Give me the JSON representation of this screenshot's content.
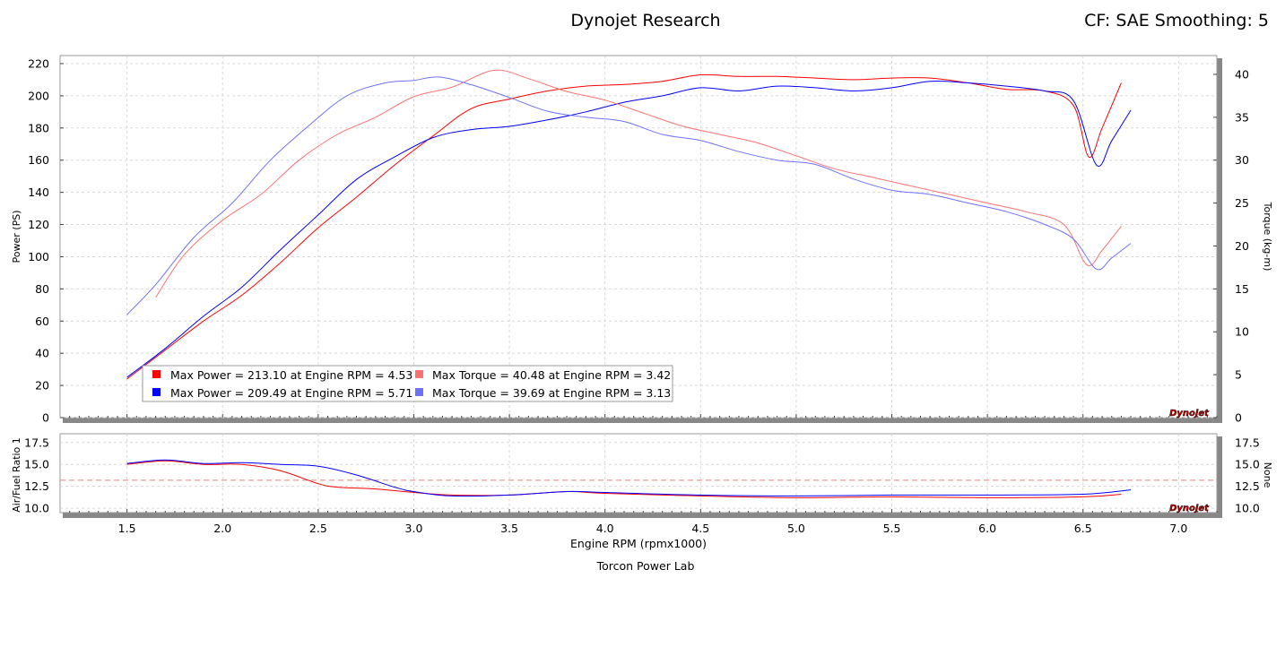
{
  "header": {
    "title": "Dynojet Research",
    "right": "CF: SAE Smoothing: 5"
  },
  "footer": "Torcon Power Lab",
  "colors": {
    "power_run1": "#ff0000",
    "power_run2": "#0000ff",
    "torque_run1": "#ff7070",
    "torque_run2": "#7070ff",
    "afr_target": "#e88080"
  },
  "logo_text": "Dynojet",
  "chart_data": [
    {
      "type": "line",
      "panel": "top",
      "xlabel": "",
      "ylabel": "Power (PS)",
      "y2label": "Torque (kg-m)",
      "xlim": [
        1.15,
        7.2
      ],
      "ylim": [
        0,
        225
      ],
      "y2lim": [
        0,
        42.19
      ],
      "x_ticks": [
        1.5,
        2.0,
        2.5,
        3.0,
        3.5,
        4.0,
        4.5,
        5.0,
        5.5,
        6.0,
        6.5,
        7.0
      ],
      "y_ticks": [
        0,
        20,
        40,
        60,
        80,
        100,
        120,
        140,
        160,
        180,
        200,
        220
      ],
      "y2_ticks": [
        0,
        5,
        10,
        15,
        20,
        25,
        30,
        35,
        40
      ],
      "grid": true,
      "legend": "bottom-left",
      "legend_entries": [
        "Max Power = 213.10 at Engine RPM = 4.53",
        "Max Torque = 40.48 at Engine RPM = 3.42",
        "Max Power = 209.49 at Engine RPM = 5.71",
        "Max Torque = 39.69 at Engine RPM = 3.13"
      ],
      "series": [
        {
          "axis": "left",
          "x": [
            1.5,
            1.7,
            1.9,
            2.1,
            2.3,
            2.5,
            2.7,
            2.9,
            3.1,
            3.3,
            3.5,
            3.7,
            3.9,
            4.1,
            4.3,
            4.5,
            4.7,
            4.9,
            5.1,
            5.3,
            5.5,
            5.7,
            5.9,
            6.1,
            6.3,
            6.45,
            6.53,
            6.6,
            6.7
          ],
          "values": [
            24,
            42,
            60,
            76,
            96,
            118,
            137,
            157,
            175,
            192,
            198,
            203,
            206,
            207,
            209,
            213,
            212,
            212,
            211,
            210,
            211,
            211,
            208,
            204,
            203,
            194,
            162,
            180,
            208
          ]
        },
        {
          "axis": "left",
          "x": [
            1.5,
            1.7,
            1.9,
            2.1,
            2.3,
            2.5,
            2.7,
            2.9,
            3.1,
            3.3,
            3.5,
            3.7,
            3.9,
            4.1,
            4.3,
            4.5,
            4.7,
            4.9,
            5.1,
            5.3,
            5.5,
            5.7,
            5.9,
            6.1,
            6.3,
            6.45,
            6.57,
            6.65,
            6.75
          ],
          "values": [
            25,
            43,
            63,
            81,
            104,
            126,
            148,
            162,
            174,
            179,
            181,
            185,
            190,
            196,
            200,
            205,
            203,
            206,
            205,
            203,
            205,
            209,
            208,
            206,
            203,
            197,
            157,
            172,
            191
          ]
        },
        {
          "axis": "right",
          "x": [
            1.65,
            1.8,
            2.0,
            2.2,
            2.4,
            2.6,
            2.8,
            3.0,
            3.2,
            3.42,
            3.6,
            3.8,
            4.0,
            4.2,
            4.4,
            4.6,
            4.8,
            5.0,
            5.2,
            5.4,
            5.6,
            5.8,
            6.0,
            6.2,
            6.4,
            6.52,
            6.6,
            6.7
          ],
          "values": [
            14,
            19,
            23,
            26,
            30,
            33,
            35,
            37.4,
            38.5,
            40.48,
            39.5,
            38,
            37,
            35.5,
            34,
            33,
            32,
            30.5,
            29,
            28,
            27,
            26,
            25,
            24,
            22.5,
            17.8,
            19.5,
            22.3
          ]
        },
        {
          "axis": "right",
          "x": [
            1.5,
            1.65,
            1.85,
            2.05,
            2.25,
            2.45,
            2.65,
            2.85,
            3.0,
            3.13,
            3.3,
            3.5,
            3.7,
            3.9,
            4.1,
            4.3,
            4.5,
            4.7,
            4.9,
            5.1,
            5.3,
            5.5,
            5.7,
            5.9,
            6.1,
            6.3,
            6.45,
            6.57,
            6.65,
            6.75
          ],
          "values": [
            12,
            15.5,
            21,
            25,
            30,
            34,
            37.5,
            39,
            39.3,
            39.69,
            38.8,
            37.3,
            35.7,
            35,
            34.5,
            33,
            32.3,
            31,
            30,
            29.5,
            27.8,
            26.5,
            26,
            25,
            24,
            22.5,
            20.8,
            17.3,
            18.6,
            20.3
          ]
        }
      ]
    },
    {
      "type": "line",
      "panel": "bottom",
      "xlabel": "Engine RPM (rpmx1000)",
      "ylabel": "Air/Fuel Ratio 1",
      "y2label": "None",
      "xlim": [
        1.15,
        7.2
      ],
      "ylim": [
        9.5,
        18.5
      ],
      "x_ticks": [
        1.5,
        2.0,
        2.5,
        3.0,
        3.5,
        4.0,
        4.5,
        5.0,
        5.5,
        6.0,
        6.5,
        7.0
      ],
      "y_ticks": [
        10.0,
        12.5,
        15.0,
        17.5
      ],
      "y_tick_labels": [
        "10.0",
        "12.5",
        "15.0",
        "17.5"
      ],
      "reference_line": 13.2,
      "grid": true,
      "series": [
        {
          "x": [
            1.5,
            1.7,
            1.9,
            2.1,
            2.3,
            2.5,
            2.6,
            2.8,
            3.0,
            3.2,
            3.5,
            3.8,
            4.0,
            4.5,
            5.0,
            5.5,
            6.0,
            6.5,
            6.7
          ],
          "values": [
            15.0,
            15.4,
            15.0,
            15.0,
            14.3,
            12.8,
            12.4,
            12.2,
            11.8,
            11.5,
            11.5,
            11.9,
            11.7,
            11.4,
            11.2,
            11.3,
            11.2,
            11.3,
            11.6
          ]
        },
        {
          "x": [
            1.5,
            1.7,
            1.9,
            2.1,
            2.3,
            2.5,
            2.7,
            2.9,
            3.0,
            3.2,
            3.5,
            3.8,
            4.0,
            4.5,
            5.0,
            5.5,
            6.0,
            6.5,
            6.75
          ],
          "values": [
            15.1,
            15.5,
            15.1,
            15.2,
            15.0,
            14.8,
            13.8,
            12.4,
            11.9,
            11.4,
            11.5,
            11.9,
            11.8,
            11.5,
            11.4,
            11.5,
            11.5,
            11.6,
            12.1
          ]
        }
      ]
    }
  ]
}
